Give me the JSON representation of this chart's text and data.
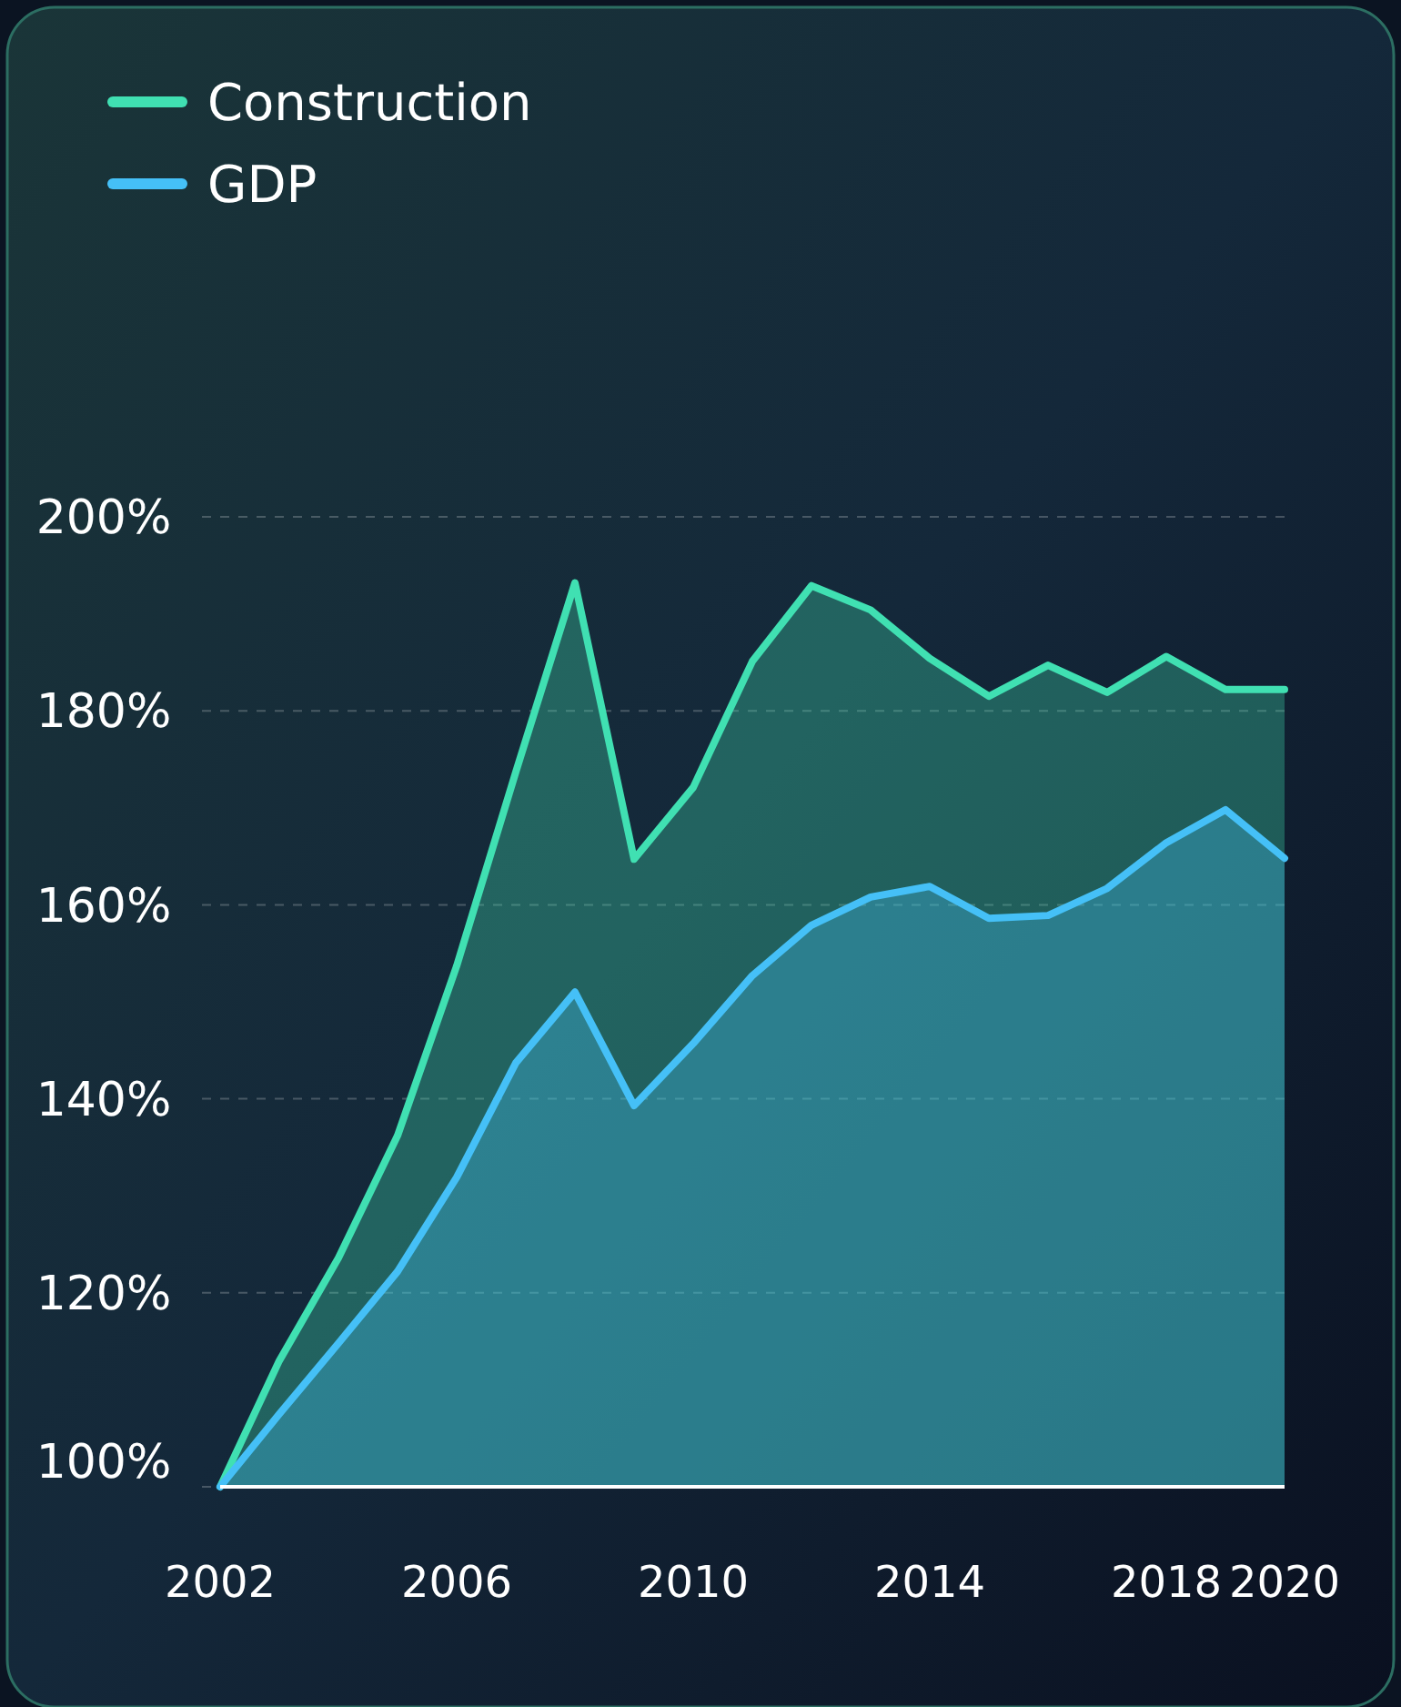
{
  "chart_data": {
    "type": "area",
    "x": [
      2002,
      2003,
      2004,
      2005,
      2006,
      2007,
      2008,
      2009,
      2010,
      2011,
      2012,
      2013,
      2014,
      2015,
      2016,
      2017,
      2018,
      2019,
      2020
    ],
    "series": [
      {
        "name": "Construction",
        "color": "#40e0b2",
        "values": [
          100,
          113,
          123.6,
          136.2,
          153.7,
          173.7,
          193.2,
          164.7,
          172.1,
          185.1,
          192.9,
          190.4,
          185.4,
          181.5,
          184.7,
          181.9,
          185.6,
          182.2,
          182.2
        ]
      },
      {
        "name": "GDP",
        "color": "#45c0f7",
        "values": [
          100,
          107.5,
          114.8,
          122.2,
          131.9,
          143.7,
          151,
          139.3,
          145.7,
          152.7,
          157.9,
          160.8,
          161.9,
          158.6,
          158.9,
          161.7,
          166.4,
          169.8,
          164.8
        ]
      }
    ],
    "xlim": [
      2002,
      2020
    ],
    "xticks": [
      2002,
      2006,
      2010,
      2014,
      2018,
      2020
    ],
    "ylim": [
      100,
      200
    ],
    "yticks": [
      {
        "value": 100,
        "label": "100%"
      },
      {
        "value": 120,
        "label": "120%"
      },
      {
        "value": 140,
        "label": "140%"
      },
      {
        "value": 160,
        "label": "160%"
      },
      {
        "value": 180,
        "label": "180%"
      },
      {
        "value": 200,
        "label": "200%"
      }
    ],
    "grid": "y",
    "legend": "top left",
    "line_style": "solid"
  }
}
